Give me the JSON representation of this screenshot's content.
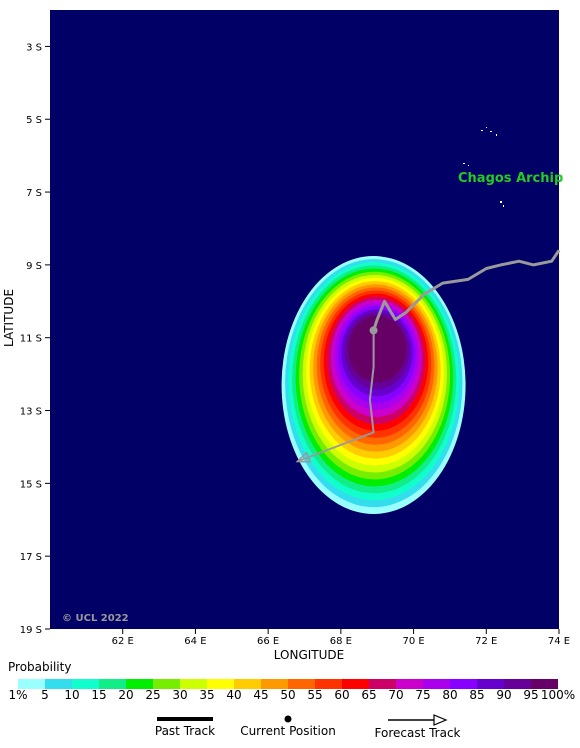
{
  "map": {
    "xlabel": "LONGITUDE",
    "ylabel": "LATITUDE",
    "x_ticks": [
      "62 E",
      "64 E",
      "66 E",
      "68 E",
      "70 E",
      "72 E",
      "74 E"
    ],
    "y_ticks": [
      "3 S",
      "5 S",
      "7 S",
      "9 S",
      "11 S",
      "13 S",
      "15 S",
      "17 S",
      "19 S"
    ],
    "place_label": "Chagos Archip",
    "copyright": "© UCL 2022",
    "colors": {
      "ocean": "#000066",
      "track": "#9a9a9a",
      "place": "#22cc22"
    }
  },
  "track": {
    "past": [
      [
        74.0,
        -8.6
      ],
      [
        73.8,
        -8.9
      ],
      [
        73.3,
        -9.0
      ],
      [
        72.9,
        -8.9
      ],
      [
        72.4,
        -9.0
      ],
      [
        72.0,
        -9.1
      ],
      [
        71.5,
        -9.4
      ],
      [
        70.8,
        -9.5
      ],
      [
        70.3,
        -9.8
      ],
      [
        69.8,
        -10.3
      ],
      [
        69.5,
        -10.5
      ],
      [
        69.2,
        -10.0
      ],
      [
        69.0,
        -10.5
      ],
      [
        68.9,
        -10.8
      ]
    ],
    "forecast": [
      [
        68.9,
        -10.8
      ],
      [
        68.9,
        -11.8
      ],
      [
        68.8,
        -12.7
      ],
      [
        68.9,
        -13.6
      ],
      [
        66.8,
        -14.4
      ]
    ]
  },
  "legend": {
    "title": "Probability",
    "labels": [
      "1%",
      "5",
      "10",
      "15",
      "20",
      "25",
      "30",
      "35",
      "40",
      "45",
      "50",
      "55",
      "60",
      "65",
      "70",
      "75",
      "80",
      "85",
      "90",
      "95",
      "100%"
    ],
    "colors": [
      "#99ffff",
      "#33ddee",
      "#11ffcc",
      "#11ee88",
      "#00ee00",
      "#77ee00",
      "#ccff00",
      "#ffff00",
      "#ffcc00",
      "#ff9900",
      "#ff6600",
      "#ff3300",
      "#ff0000",
      "#cc0066",
      "#cc00cc",
      "#aa00ee",
      "#8800ff",
      "#6600cc",
      "#660099",
      "#660066"
    ]
  },
  "key": {
    "past_label": "Past Track",
    "current_label": "Current Position",
    "forecast_label": "Forecast Track"
  }
}
